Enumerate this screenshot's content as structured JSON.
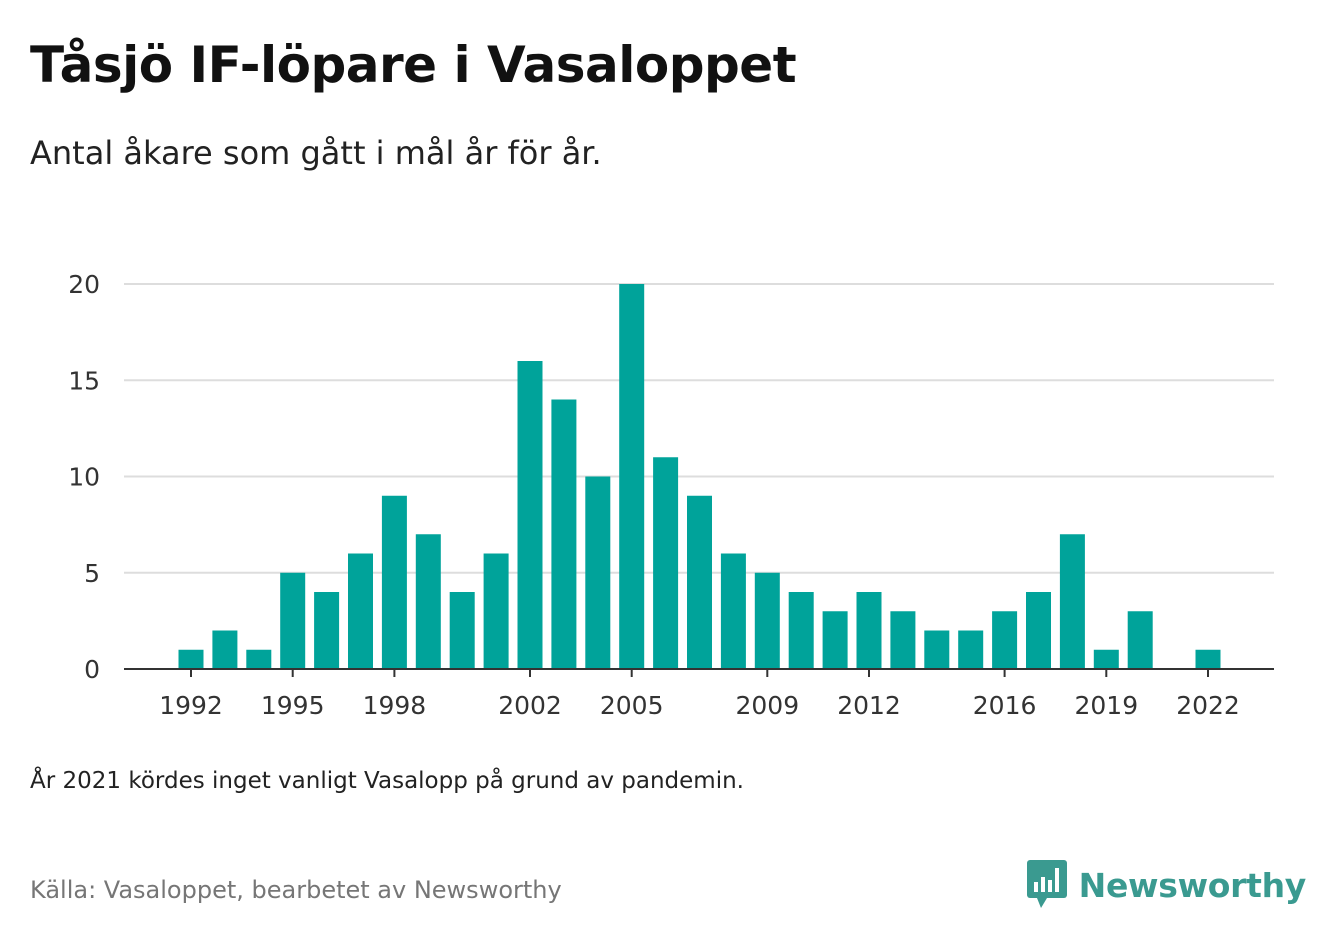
{
  "header": {
    "title": "Tåsjö IF-löpare i Vasaloppet",
    "subtitle": "Antal åkare som gått i mål år för år."
  },
  "footer": {
    "note": "År 2021 kördes inget vanligt Vasalopp på grund av pandemin.",
    "source": "Källa: Vasaloppet, bearbetet av Newsworthy",
    "brand": "Newsworthy"
  },
  "colors": {
    "bar": "#00a39a",
    "grid": "#dddddd",
    "axis": "#333333",
    "brand": "#3a9a90"
  },
  "chart_data": {
    "type": "bar",
    "title": "Tåsjö IF-löpare i Vasaloppet",
    "subtitle": "Antal åkare som gått i mål år för år.",
    "xlabel": "",
    "ylabel": "",
    "ylim": [
      0,
      20
    ],
    "yticks": [
      0,
      5,
      10,
      15,
      20
    ],
    "xtick_labels": [
      "1992",
      "1995",
      "1998",
      "2002",
      "2005",
      "2009",
      "2012",
      "2016",
      "2019",
      "2022"
    ],
    "grid": true,
    "legend": "none",
    "categories": [
      "1992",
      "1993",
      "1994",
      "1995",
      "1996",
      "1997",
      "1998",
      "1999",
      "2000",
      "2001",
      "2002",
      "2003",
      "2004",
      "2005",
      "2006",
      "2007",
      "2008",
      "2009",
      "2010",
      "2011",
      "2012",
      "2013",
      "2014",
      "2015",
      "2016",
      "2017",
      "2018",
      "2019",
      "2020",
      "2021",
      "2022"
    ],
    "values": [
      1,
      2,
      1,
      5,
      4,
      6,
      9,
      7,
      4,
      6,
      16,
      14,
      10,
      20,
      11,
      9,
      6,
      5,
      4,
      3,
      4,
      3,
      2,
      2,
      3,
      4,
      7,
      1,
      3,
      0,
      1
    ]
  }
}
